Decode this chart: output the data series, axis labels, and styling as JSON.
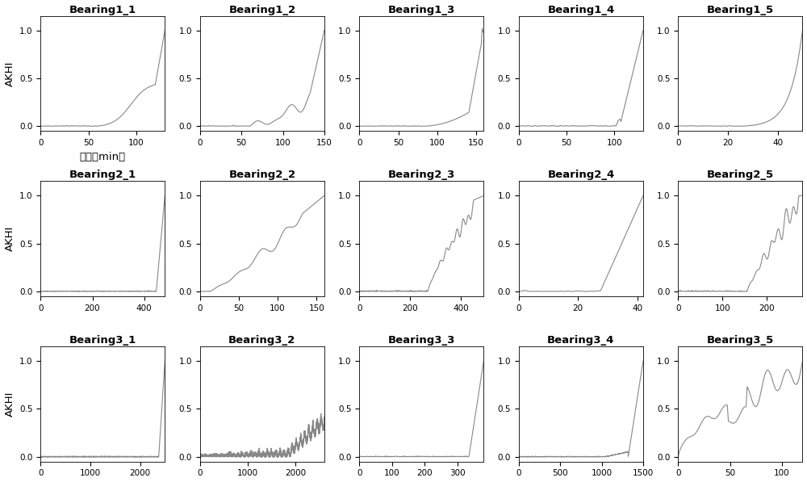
{
  "titles": [
    [
      "Bearing1_1",
      "Bearing1_2",
      "Bearing1_3",
      "Bearing1_4",
      "Bearing1_5"
    ],
    [
      "Bearing2_1",
      "Bearing2_2",
      "Bearing2_3",
      "Bearing2_4",
      "Bearing2_5"
    ],
    [
      "Bearing3_1",
      "Bearing3_2",
      "Bearing3_3",
      "Bearing3_4",
      "Bearing3_5"
    ]
  ],
  "xlims": [
    [
      130,
      150,
      160,
      130,
      50
    ],
    [
      480,
      160,
      490,
      42,
      280
    ],
    [
      2500,
      2600,
      380,
      1500,
      120
    ]
  ],
  "npoints": [
    [
      130,
      150,
      160,
      130,
      50
    ],
    [
      480,
      160,
      490,
      42,
      280
    ],
    [
      2500,
      2600,
      380,
      1500,
      120
    ]
  ],
  "ylabel": "AKHI",
  "xlabel": "时间（min）",
  "line_color": "#888888",
  "background_color": "#ffffff"
}
